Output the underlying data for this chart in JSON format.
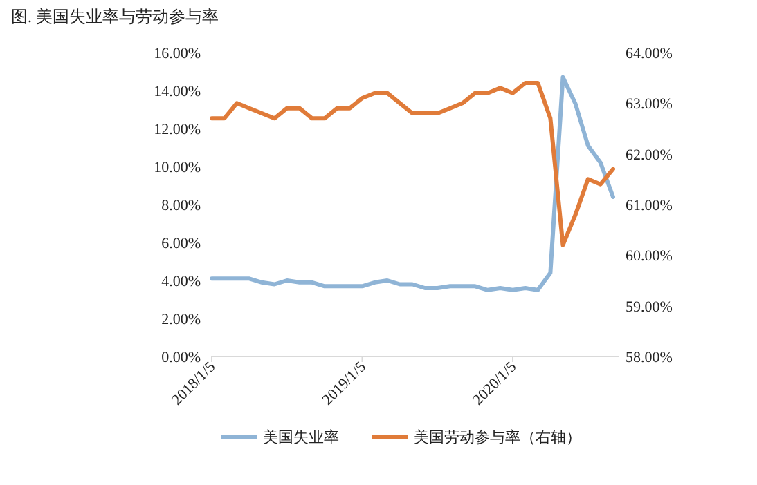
{
  "chart_data": {
    "type": "line",
    "title": "图. 美国失业率与劳动参与率",
    "categories": [
      "2018/1/5",
      null,
      null,
      null,
      null,
      null,
      null,
      null,
      null,
      null,
      null,
      null,
      "2019/1/5",
      null,
      null,
      null,
      null,
      null,
      null,
      null,
      null,
      null,
      null,
      null,
      "2020/1/5",
      null,
      null,
      null,
      null,
      null,
      null,
      null,
      null
    ],
    "series": [
      {
        "name": "美国失业率",
        "color": "#8fb4d6",
        "values": [
          4.1,
          4.1,
          4.1,
          4.1,
          3.9,
          3.8,
          4.0,
          3.9,
          3.9,
          3.7,
          3.7,
          3.7,
          3.7,
          3.9,
          4.0,
          3.8,
          3.8,
          3.6,
          3.6,
          3.7,
          3.7,
          3.7,
          3.5,
          3.6,
          3.5,
          3.6,
          3.5,
          4.4,
          14.7,
          13.3,
          11.1,
          10.2,
          8.4
        ]
      },
      {
        "name": "美国劳动参与率（右轴）",
        "color": "#e07b39",
        "axis": "y2",
        "values": [
          62.7,
          62.7,
          63.0,
          62.9,
          62.8,
          62.7,
          62.9,
          62.9,
          62.7,
          62.7,
          62.9,
          62.9,
          63.1,
          63.2,
          63.2,
          63.0,
          62.8,
          62.8,
          62.8,
          62.9,
          63.0,
          63.2,
          63.2,
          63.3,
          63.2,
          63.4,
          63.4,
          62.7,
          60.2,
          60.8,
          61.5,
          61.4,
          61.7
        ]
      }
    ],
    "ylim": [
      0,
      16
    ],
    "yticks": [
      {
        "value": 0,
        "label": "0.00%"
      },
      {
        "value": 2,
        "label": "2.00%"
      },
      {
        "value": 4,
        "label": "4.00%"
      },
      {
        "value": 6,
        "label": "6.00%"
      },
      {
        "value": 8,
        "label": "8.00%"
      },
      {
        "value": 10,
        "label": "10.00%"
      },
      {
        "value": 12,
        "label": "12.00%"
      },
      {
        "value": 14,
        "label": "14.00%"
      },
      {
        "value": 16,
        "label": "16.00%"
      }
    ],
    "y2lim": [
      58,
      64
    ],
    "y2ticks": [
      {
        "value": 58,
        "label": "58.00%"
      },
      {
        "value": 59,
        "label": "59.00%"
      },
      {
        "value": 60,
        "label": "60.00%"
      },
      {
        "value": 61,
        "label": "61.00%"
      },
      {
        "value": 62,
        "label": "62.00%"
      },
      {
        "value": 63,
        "label": "63.00%"
      },
      {
        "value": 64,
        "label": "64.00%"
      }
    ],
    "grid": false,
    "legend": "bottom",
    "marker": "none",
    "line_style": "solid"
  }
}
